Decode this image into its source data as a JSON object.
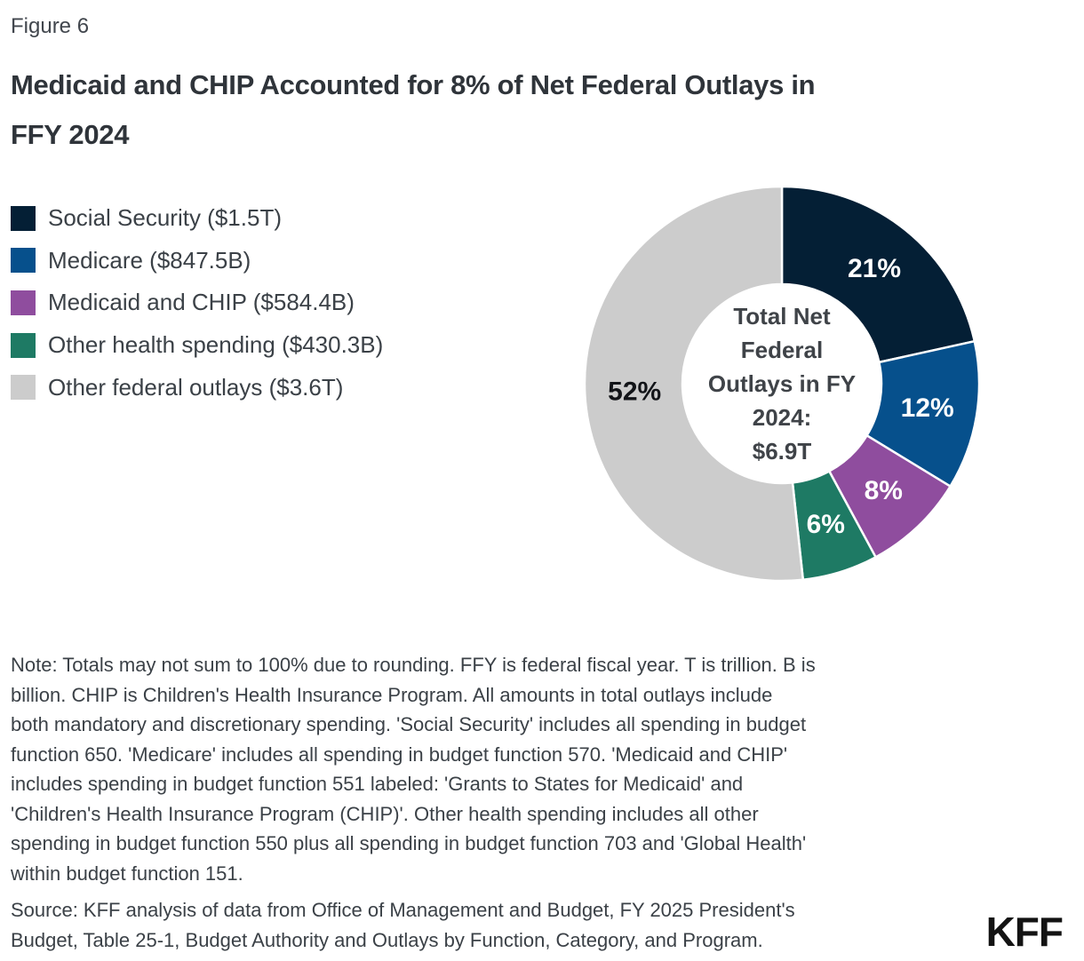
{
  "figure_label": "Figure 6",
  "title": "Medicaid and CHIP Accounted for 8% of Net Federal Outlays in\nFFY 2024",
  "chart_data": {
    "type": "pie",
    "subtype": "donut",
    "title": "Medicaid and CHIP Accounted for 8% of Net Federal Outlays in FFY 2024",
    "categories": [
      "Social Security",
      "Medicare",
      "Medicaid and CHIP",
      "Other health spending",
      "Other federal outlays"
    ],
    "values_billions_usd": [
      1500,
      847.5,
      584.4,
      430.3,
      3600
    ],
    "percent_labels": [
      "21%",
      "12%",
      "8%",
      "6%",
      "52%"
    ],
    "colors": [
      "#041F35",
      "#06508C",
      "#8F4D9E",
      "#1E7A64",
      "#CCCCCC"
    ],
    "label_colors": [
      "#FFFFFF",
      "#FFFFFF",
      "#FFFFFF",
      "#FFFFFF",
      "#121418"
    ],
    "legend": [
      {
        "label": "Social Security ($1.5T)"
      },
      {
        "label": "Medicare ($847.5B)"
      },
      {
        "label": "Medicaid and CHIP ($584.4B)"
      },
      {
        "label": "Other health spending ($430.3B)"
      },
      {
        "label": "Other federal outlays ($3.6T)"
      }
    ],
    "center_label": "Total Net\nFederal\nOutlays in FY\n2024:\n$6.9T",
    "total_label": "Total Net Federal Outlays in FY 2024: $6.9T",
    "start_angle_deg": 0,
    "direction": "clockwise",
    "legend_position": "left",
    "grid": false
  },
  "note": "Note: Totals may not sum to 100% due to rounding. FFY is federal fiscal year. T is trillion. B is\nbillion. CHIP is Children's Health Insurance Program. All amounts in total outlays include\nboth mandatory and discretionary spending. 'Social Security' includes all spending in budget\nfunction 650. 'Medicare' includes all spending in budget function 570. 'Medicaid and CHIP'\nincludes spending in budget function 551 labeled: 'Grants to States for Medicaid' and\n'Children's Health Insurance Program (CHIP)'. Other health spending includes all other\nspending in budget function 550 plus all spending in budget function 703 and 'Global Health'\nwithin budget function 151.",
  "source": "Source: KFF analysis of data from Office of Management and Budget, FY 2025 President's\nBudget, Table 25-1, Budget Authority and Outlays by Function, Category, and Program.",
  "logo": "KFF"
}
